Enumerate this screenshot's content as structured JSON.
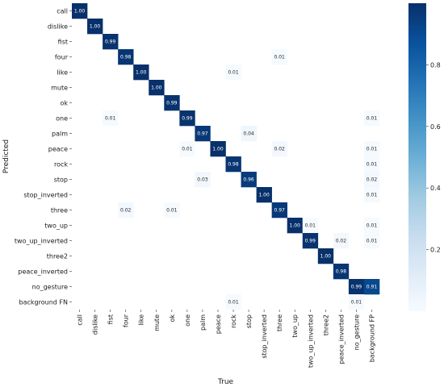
{
  "chart_data": {
    "type": "heatmap",
    "title": "",
    "xlabel": "True",
    "ylabel": "Predicted",
    "x_categories": [
      "call",
      "dislike",
      "fist",
      "four",
      "like",
      "mute",
      "ok",
      "one",
      "palm",
      "peace",
      "rock",
      "stop",
      "stop_inverted",
      "three",
      "two_up",
      "two_up_inverted",
      "three2",
      "peace_inverted",
      "no_gesture",
      "background FP"
    ],
    "y_categories": [
      "call",
      "dislike",
      "fist",
      "four",
      "like",
      "mute",
      "ok",
      "one",
      "palm",
      "peace",
      "rock",
      "stop",
      "stop_inverted",
      "three",
      "two_up",
      "two_up_inverted",
      "three2",
      "peace_inverted",
      "no_gesture",
      "background FN"
    ],
    "cells": [
      {
        "row": 0,
        "col": 0,
        "value": 1.0,
        "label": "1.00"
      },
      {
        "row": 1,
        "col": 1,
        "value": 1.0,
        "label": "1.00"
      },
      {
        "row": 2,
        "col": 2,
        "value": 0.99,
        "label": "0.99"
      },
      {
        "row": 3,
        "col": 3,
        "value": 0.98,
        "label": "0.98"
      },
      {
        "row": 3,
        "col": 13,
        "value": 0.01,
        "label": "0.01"
      },
      {
        "row": 4,
        "col": 4,
        "value": 1.0,
        "label": "1.00"
      },
      {
        "row": 4,
        "col": 10,
        "value": 0.01,
        "label": "0.01"
      },
      {
        "row": 5,
        "col": 5,
        "value": 1.0,
        "label": "1.00"
      },
      {
        "row": 6,
        "col": 6,
        "value": 0.99,
        "label": "0.99"
      },
      {
        "row": 7,
        "col": 2,
        "value": 0.01,
        "label": "0.01"
      },
      {
        "row": 7,
        "col": 7,
        "value": 0.99,
        "label": "0.99"
      },
      {
        "row": 7,
        "col": 19,
        "value": 0.01,
        "label": "0.01"
      },
      {
        "row": 8,
        "col": 8,
        "value": 0.97,
        "label": "0.97"
      },
      {
        "row": 8,
        "col": 11,
        "value": 0.04,
        "label": "0.04"
      },
      {
        "row": 9,
        "col": 7,
        "value": 0.01,
        "label": "0.01"
      },
      {
        "row": 9,
        "col": 9,
        "value": 1.0,
        "label": "1.00"
      },
      {
        "row": 9,
        "col": 13,
        "value": 0.02,
        "label": "0.02"
      },
      {
        "row": 9,
        "col": 19,
        "value": 0.01,
        "label": "0.01"
      },
      {
        "row": 10,
        "col": 10,
        "value": 0.98,
        "label": "0.98"
      },
      {
        "row": 10,
        "col": 19,
        "value": 0.01,
        "label": "0.01"
      },
      {
        "row": 11,
        "col": 8,
        "value": 0.03,
        "label": "0.03"
      },
      {
        "row": 11,
        "col": 11,
        "value": 0.96,
        "label": "0.96"
      },
      {
        "row": 11,
        "col": 19,
        "value": 0.02,
        "label": "0.02"
      },
      {
        "row": 12,
        "col": 12,
        "value": 1.0,
        "label": "1.00"
      },
      {
        "row": 12,
        "col": 19,
        "value": 0.01,
        "label": "0.01"
      },
      {
        "row": 13,
        "col": 3,
        "value": 0.02,
        "label": "0.02"
      },
      {
        "row": 13,
        "col": 6,
        "value": 0.01,
        "label": "0.01"
      },
      {
        "row": 13,
        "col": 13,
        "value": 0.97,
        "label": "0.97"
      },
      {
        "row": 14,
        "col": 14,
        "value": 1.0,
        "label": "1.00"
      },
      {
        "row": 14,
        "col": 15,
        "value": 0.01,
        "label": "0.01"
      },
      {
        "row": 14,
        "col": 19,
        "value": 0.01,
        "label": "0.01"
      },
      {
        "row": 15,
        "col": 15,
        "value": 0.99,
        "label": "0.99"
      },
      {
        "row": 15,
        "col": 17,
        "value": 0.02,
        "label": "0.02"
      },
      {
        "row": 15,
        "col": 19,
        "value": 0.01,
        "label": "0.01"
      },
      {
        "row": 16,
        "col": 16,
        "value": 1.0,
        "label": "1.00"
      },
      {
        "row": 17,
        "col": 17,
        "value": 0.98,
        "label": "0.98"
      },
      {
        "row": 18,
        "col": 18,
        "value": 0.99,
        "label": "0.99"
      },
      {
        "row": 18,
        "col": 19,
        "value": 0.91,
        "label": "0.91"
      },
      {
        "row": 19,
        "col": 10,
        "value": 0.01,
        "label": "0.01"
      },
      {
        "row": 19,
        "col": 18,
        "value": 0.01,
        "label": "0.01"
      }
    ],
    "colorbar": {
      "min": 0.0,
      "max": 1.0,
      "ticks": [
        0.2,
        0.4,
        0.6,
        0.8
      ],
      "tick_labels": [
        "0.2",
        "0.4",
        "0.6",
        "0.8"
      ],
      "colormap": "Blues",
      "color_low": "#f7fbff",
      "color_high": "#08306b"
    },
    "grid": false,
    "legend": "none"
  }
}
